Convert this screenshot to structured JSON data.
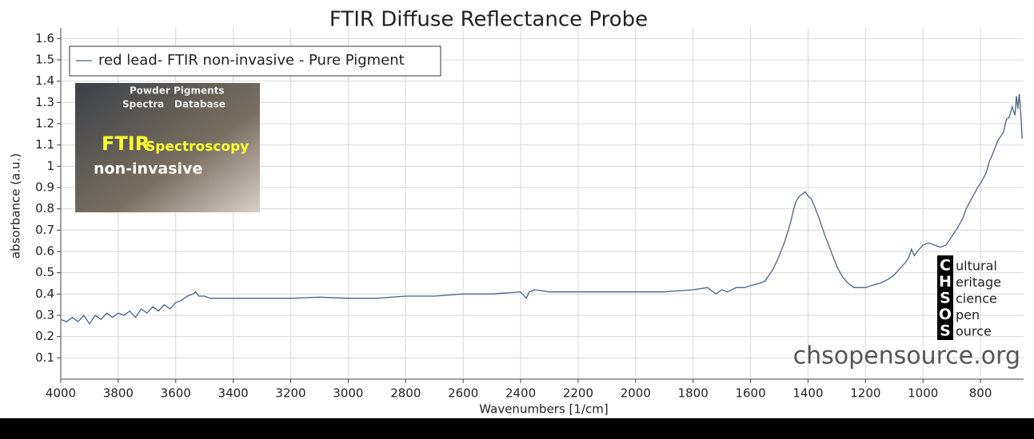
{
  "chart_data": {
    "type": "line",
    "title": "FTIR Diffuse Reflectance Probe",
    "x_label": "Wavenumbers [1/cm]",
    "y_label": "absorbance (a.u.)",
    "x": [
      4000,
      3980,
      3960,
      3940,
      3920,
      3900,
      3880,
      3860,
      3840,
      3820,
      3800,
      3780,
      3760,
      3740,
      3720,
      3700,
      3680,
      3660,
      3640,
      3620,
      3600,
      3580,
      3560,
      3540,
      3530,
      3520,
      3500,
      3480,
      3450,
      3400,
      3300,
      3200,
      3100,
      3000,
      2900,
      2800,
      2700,
      2600,
      2500,
      2400,
      2380,
      2370,
      2350,
      2300,
      2200,
      2100,
      2000,
      1900,
      1800,
      1750,
      1720,
      1700,
      1680,
      1650,
      1620,
      1600,
      1570,
      1550,
      1530,
      1520,
      1500,
      1480,
      1460,
      1450,
      1440,
      1430,
      1420,
      1410,
      1400,
      1390,
      1380,
      1360,
      1340,
      1320,
      1300,
      1280,
      1260,
      1240,
      1220,
      1200,
      1180,
      1150,
      1120,
      1100,
      1080,
      1060,
      1050,
      1040,
      1030,
      1020,
      1000,
      980,
      960,
      940,
      920,
      900,
      880,
      860,
      850,
      830,
      810,
      800,
      780,
      770,
      760,
      740,
      720,
      710,
      700,
      690,
      680,
      675,
      670,
      665,
      660,
      655
    ],
    "series": [
      {
        "name": "red lead- FTIR non-invasive - Pure Pigment",
        "color": "#4a6285",
        "values": [
          0.28,
          0.27,
          0.29,
          0.27,
          0.3,
          0.26,
          0.3,
          0.28,
          0.31,
          0.29,
          0.31,
          0.3,
          0.32,
          0.29,
          0.33,
          0.31,
          0.34,
          0.32,
          0.35,
          0.33,
          0.36,
          0.37,
          0.39,
          0.4,
          0.41,
          0.39,
          0.39,
          0.38,
          0.38,
          0.38,
          0.38,
          0.38,
          0.385,
          0.38,
          0.38,
          0.39,
          0.39,
          0.4,
          0.4,
          0.41,
          0.38,
          0.41,
          0.42,
          0.41,
          0.41,
          0.41,
          0.41,
          0.41,
          0.42,
          0.43,
          0.4,
          0.42,
          0.41,
          0.43,
          0.43,
          0.44,
          0.45,
          0.46,
          0.5,
          0.52,
          0.58,
          0.65,
          0.74,
          0.8,
          0.84,
          0.86,
          0.87,
          0.88,
          0.86,
          0.85,
          0.82,
          0.75,
          0.67,
          0.6,
          0.53,
          0.48,
          0.45,
          0.43,
          0.43,
          0.43,
          0.44,
          0.45,
          0.47,
          0.49,
          0.52,
          0.55,
          0.57,
          0.61,
          0.58,
          0.6,
          0.63,
          0.64,
          0.63,
          0.62,
          0.63,
          0.67,
          0.71,
          0.76,
          0.8,
          0.85,
          0.9,
          0.92,
          0.97,
          1.02,
          1.05,
          1.12,
          1.16,
          1.22,
          1.23,
          1.28,
          1.24,
          1.33,
          1.27,
          1.34,
          1.25,
          1.13
        ]
      }
    ],
    "xlim": [
      4000,
      650
    ],
    "ylim": [
      0,
      1.65
    ],
    "xticks": [
      4000,
      3800,
      3600,
      3400,
      3200,
      3000,
      2800,
      2600,
      2400,
      2200,
      2000,
      1800,
      1600,
      1400,
      1200,
      1000,
      800
    ],
    "yticks": [
      0.1,
      0.2,
      0.3,
      0.4,
      0.5,
      0.6,
      0.7,
      0.8,
      0.9,
      1,
      1.1,
      1.2,
      1.3,
      1.4,
      1.5,
      1.6
    ],
    "grid": true,
    "legend": "upper left"
  },
  "inset": {
    "lines": [
      "Powder Pigments",
      "Spectra",
      "Database",
      "FTIR",
      "Spectroscopy",
      "non-invasive"
    ]
  },
  "logo": {
    "letters": [
      "C",
      "H",
      "S",
      "O",
      "S"
    ],
    "words": [
      "ultural",
      "eritage",
      "cience",
      "pen",
      "ource"
    ]
  },
  "watermark": "chsopensource.org"
}
